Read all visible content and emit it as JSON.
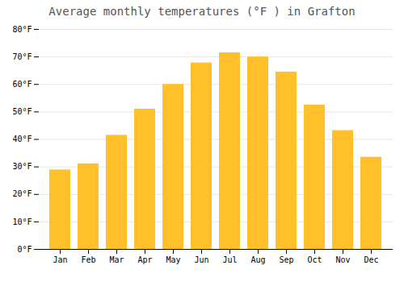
{
  "chart_data": {
    "type": "bar",
    "title": "Average monthly temperatures (°F ) in Grafton",
    "categories": [
      "Jan",
      "Feb",
      "Mar",
      "Apr",
      "May",
      "Jun",
      "Jul",
      "Aug",
      "Sep",
      "Oct",
      "Nov",
      "Dec"
    ],
    "values": [
      28.9,
      31.1,
      41.5,
      51.0,
      60.0,
      67.8,
      71.5,
      70.0,
      64.5,
      52.5,
      43.2,
      33.5
    ],
    "color": "#FFC02A",
    "ylim": [
      0,
      80
    ],
    "yticks": [
      {
        "value": 0,
        "label": "0°F"
      },
      {
        "value": 10,
        "label": "10°F"
      },
      {
        "value": 20,
        "label": "20°F"
      },
      {
        "value": 30,
        "label": "30°F"
      },
      {
        "value": 40,
        "label": "40°F"
      },
      {
        "value": 50,
        "label": "50°F"
      },
      {
        "value": 60,
        "label": "60°F"
      },
      {
        "value": 70,
        "label": "70°F"
      },
      {
        "value": 80,
        "label": "80°F"
      }
    ],
    "grid": true
  }
}
